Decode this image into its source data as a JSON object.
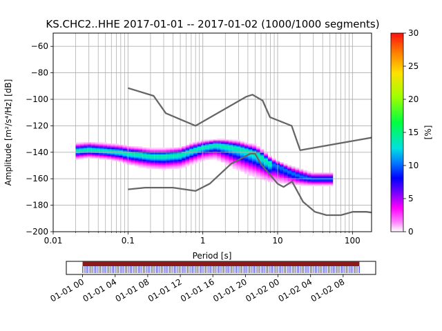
{
  "chart_data": {
    "type": "heatmap",
    "title": "KS.CHC2..HHE   2017-01-01 -- 2017-01-02  (1000/1000 segments)",
    "xlabel": "Period [s]",
    "ylabel": "Amplitude [m²/s⁴/Hz] [dB]",
    "x_scale": "log",
    "xlim": [
      0.01,
      180
    ],
    "ylim": [
      -200,
      -50
    ],
    "x_ticks": [
      {
        "value": 0.01,
        "label": "0.01"
      },
      {
        "value": 0.1,
        "label": "0.1"
      },
      {
        "value": 1,
        "label": "1"
      },
      {
        "value": 10,
        "label": "10"
      },
      {
        "value": 100,
        "label": "100"
      }
    ],
    "y_ticks": [
      {
        "value": -60,
        "label": "−60"
      },
      {
        "value": -80,
        "label": "−80"
      },
      {
        "value": -100,
        "label": "−100"
      },
      {
        "value": -120,
        "label": "−120"
      },
      {
        "value": -140,
        "label": "−140"
      },
      {
        "value": -160,
        "label": "−160"
      },
      {
        "value": -180,
        "label": "−180"
      },
      {
        "value": -200,
        "label": "−200"
      }
    ],
    "grid": true,
    "colorbar": {
      "label": "[%]",
      "range": [
        0,
        30
      ],
      "ticks": [
        {
          "value": 0,
          "label": "0"
        },
        {
          "value": 5,
          "label": "5"
        },
        {
          "value": 10,
          "label": "10"
        },
        {
          "value": 15,
          "label": "15"
        },
        {
          "value": 20,
          "label": "20"
        },
        {
          "value": 25,
          "label": "25"
        },
        {
          "value": 30,
          "label": "30"
        }
      ]
    },
    "density_band": {
      "period": [
        0.02,
        0.03,
        0.05,
        0.08,
        0.1,
        0.15,
        0.2,
        0.3,
        0.5,
        0.7,
        1.0,
        1.5,
        2.0,
        3.0,
        4.0,
        5.0,
        6.0,
        7.0,
        8.0,
        10.0,
        12.0,
        15.0,
        20.0,
        28.0,
        55.0
      ],
      "mode_db": [
        -139,
        -138,
        -139,
        -140,
        -141,
        -142,
        -143,
        -143,
        -142,
        -139,
        -136,
        -134,
        -135,
        -137,
        -139,
        -141,
        -143,
        -146,
        -148,
        -150,
        -152,
        -155,
        -158,
        -160,
        -160
      ],
      "upper_db": [
        -133,
        -132,
        -133,
        -134,
        -135,
        -136,
        -137,
        -137,
        -136,
        -133,
        -131,
        -130,
        -130,
        -131,
        -133,
        -134,
        -137,
        -140,
        -143,
        -146,
        -148,
        -150,
        -152,
        -155,
        -155
      ],
      "lower_db": [
        -146,
        -145,
        -146,
        -148,
        -150,
        -152,
        -153,
        -154,
        -153,
        -150,
        -147,
        -146,
        -150,
        -155,
        -158,
        -160,
        -162,
        -163,
        -164,
        -165,
        -165,
        -166,
        -166,
        -166,
        -166
      ],
      "peak_percent": 14,
      "bins_x": [
        0.02,
        28
      ],
      "bins_x_low_freq": [
        28,
        55
      ]
    },
    "noise_models": {
      "high_noise_model": {
        "period": [
          0.1,
          0.22,
          0.32,
          0.8,
          3.8,
          4.6,
          6.3,
          7.9,
          15.4,
          20,
          354.8
        ],
        "db": [
          -91.5,
          -97.4,
          -110.5,
          -120,
          -98,
          -96.5,
          -101,
          -113.5,
          -120,
          -138.5,
          -126
        ]
      },
      "low_noise_model": {
        "period": [
          0.1,
          0.17,
          0.4,
          0.8,
          1.24,
          2.4,
          4.3,
          5,
          6,
          10,
          12,
          15.6,
          21.9,
          31.6,
          45,
          70,
          101,
          154,
          180
        ],
        "db": [
          -168,
          -166.7,
          -166.7,
          -169.2,
          -163.7,
          -148.6,
          -141.1,
          -141.1,
          -149,
          -163.8,
          -166.2,
          -162.1,
          -177.5,
          -185,
          -187.5,
          -187.5,
          -185,
          -185,
          -185.5
        ]
      }
    },
    "time_axis": {
      "ticks": [
        {
          "label": "01-01 00",
          "hours": 0
        },
        {
          "label": "01-01 04",
          "hours": 4
        },
        {
          "label": "01-01 08",
          "hours": 8
        },
        {
          "label": "01-01 12",
          "hours": 12
        },
        {
          "label": "01-01 16",
          "hours": 16
        },
        {
          "label": "01-01 20",
          "hours": 20
        },
        {
          "label": "01-02 00",
          "hours": 24
        },
        {
          "label": "01-02 04",
          "hours": 28
        },
        {
          "label": "01-02 08",
          "hours": 32
        }
      ],
      "range_hours": [
        -2,
        36
      ],
      "coverage_hours": [
        0,
        34
      ],
      "segments": 1000
    },
    "colors": {
      "noise_model": "#666666",
      "grid": "#b0b0b0",
      "coverage_bar": "#8b1a1a",
      "segment_ticks": "#0000cc"
    }
  }
}
